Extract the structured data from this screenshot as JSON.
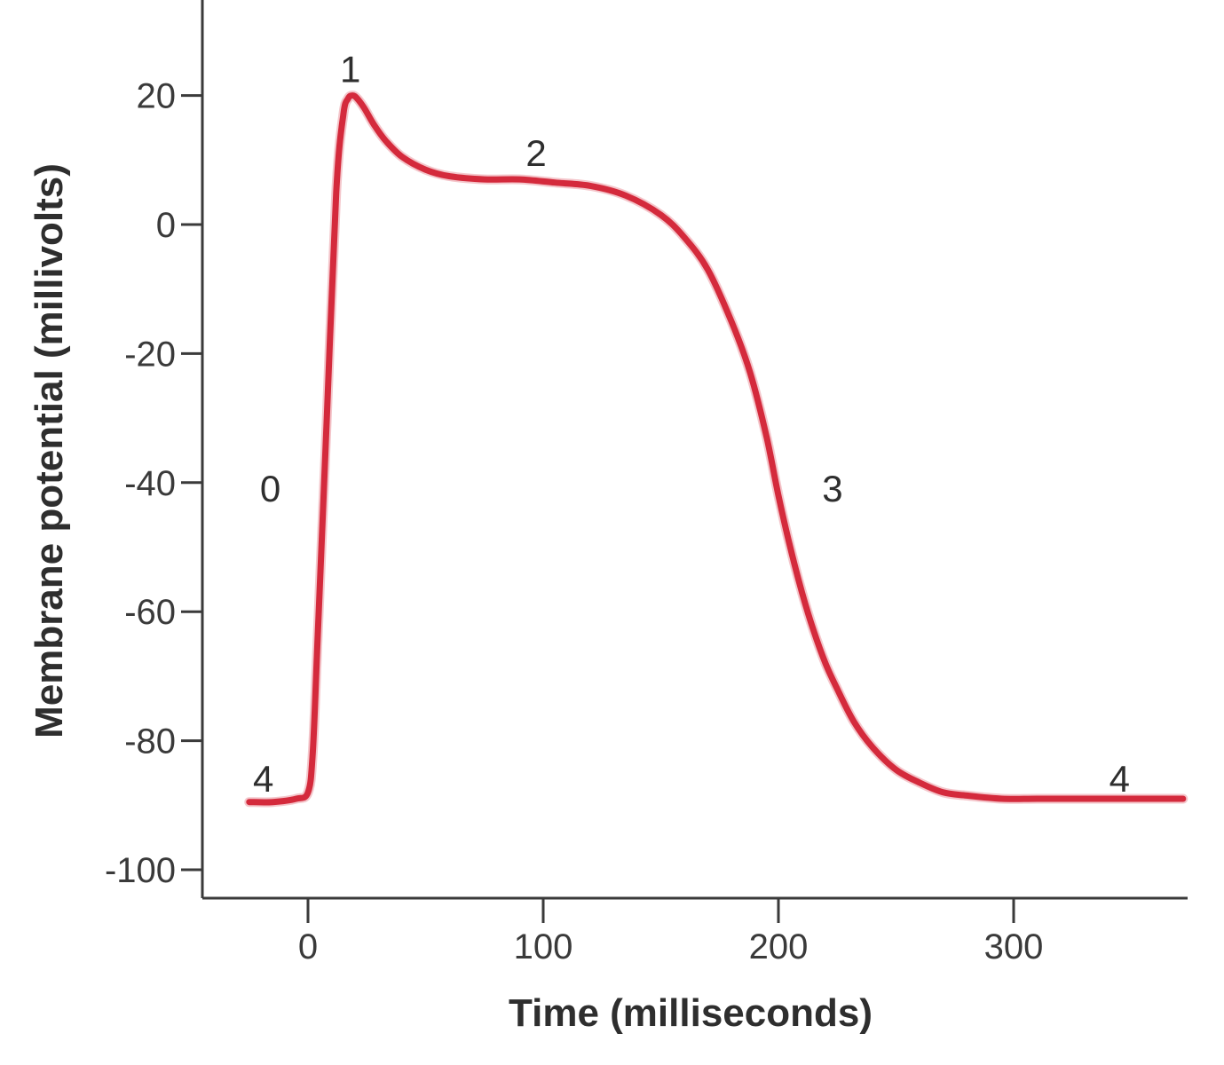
{
  "chart_data": {
    "type": "line",
    "title": "",
    "xlabel": "Time (milliseconds)",
    "ylabel": "Membrane potential (millivolts)",
    "xlim": [
      -45,
      375
    ],
    "ylim": [
      -105,
      35
    ],
    "x_ticks": [
      0,
      100,
      200,
      300
    ],
    "y_ticks": [
      20,
      0,
      -20,
      -40,
      -60,
      -80,
      -100
    ],
    "x_tick_labels": [
      "0",
      "100",
      "200",
      "300"
    ],
    "y_tick_labels": [
      "20",
      "0",
      "-20",
      "-40",
      "-60",
      "-80",
      "-100"
    ],
    "grid": false,
    "legend": "none",
    "line_color": "#d42a3c",
    "series": [
      {
        "x": [
          -25,
          -15,
          -5,
          0,
          2,
          4,
          8,
          12,
          15,
          17,
          19,
          21,
          24,
          28,
          33,
          40,
          50,
          60,
          75,
          90,
          105,
          120,
          135,
          150,
          160,
          170,
          180,
          188,
          195,
          200,
          205,
          210,
          215,
          220,
          225,
          232,
          240,
          250,
          260,
          270,
          280,
          295,
          310,
          330,
          350,
          372
        ],
        "y": [
          -89.5,
          -89.5,
          -89,
          -88,
          -82,
          -65,
          -30,
          5,
          17,
          19.5,
          20,
          19.5,
          18,
          15.5,
          13,
          10.5,
          8.5,
          7.5,
          7,
          7,
          6.5,
          6,
          4.5,
          1.5,
          -2,
          -7,
          -15,
          -23,
          -33,
          -42,
          -50,
          -57,
          -63,
          -68,
          -72,
          -77,
          -81,
          -84.5,
          -86.5,
          -88,
          -88.5,
          -89,
          -89,
          -89,
          -89,
          -89
        ]
      }
    ],
    "annotations": [
      {
        "text": "0",
        "x": -16,
        "y": -41
      },
      {
        "text": "1",
        "x": 18,
        "y": 24
      },
      {
        "text": "2",
        "x": 97,
        "y": 11
      },
      {
        "text": "3",
        "x": 223,
        "y": -41
      },
      {
        "text": "4",
        "x": -19,
        "y": -86
      },
      {
        "text": "4",
        "x": 345,
        "y": -86
      }
    ]
  }
}
